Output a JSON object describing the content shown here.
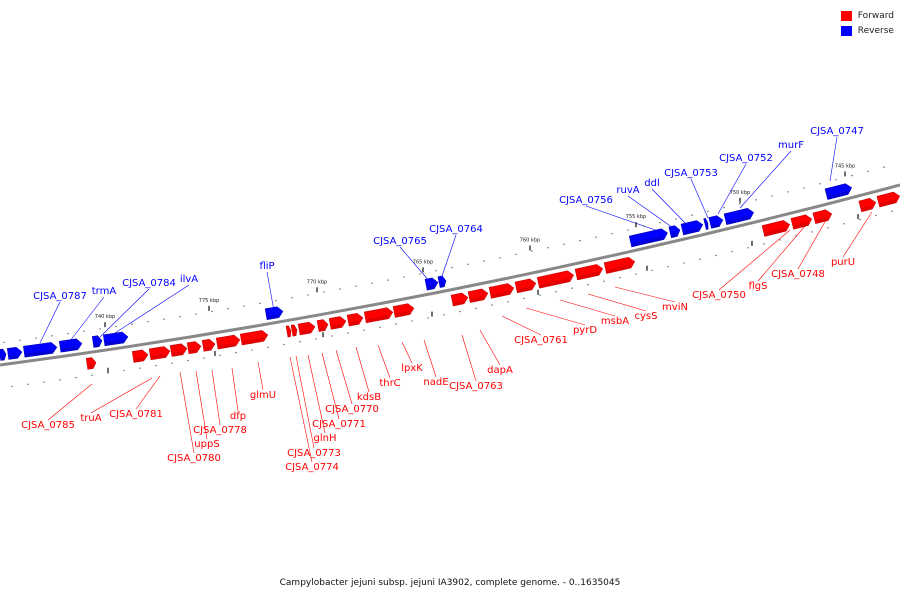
{
  "caption": "Campylobacter jejuni subsp. jejuni IA3902, complete genome. - 0..1635045",
  "legend": [
    {
      "label": "Forward",
      "color": "#ff0000"
    },
    {
      "label": "Reverse",
      "color": "#0000ff"
    }
  ],
  "colors": {
    "forward": "#ff0000",
    "forward_shade": "#c80000",
    "reverse": "#0000ff",
    "reverse_shade": "#0000b4",
    "backbone": "#888888"
  },
  "ticks": [
    "740 kbp",
    "775 kbp",
    "770 kbp",
    "765 kbp",
    "760 kbp",
    "755 kbp",
    "750 kbp",
    "745 kbp"
  ],
  "forward_labels": [
    "CJSA_0785",
    "truA",
    "CJSA_0781",
    "CJSA_0780",
    "uppS",
    "CJSA_0778",
    "dfp",
    "glmU",
    "CJSA_0774",
    "CJSA_0773",
    "glnH",
    "CJSA_0771",
    "CJSA_0770",
    "kdsB",
    "thrC",
    "lpxK",
    "nadE",
    "CJSA_0763",
    "dapA",
    "CJSA_0761",
    "pyrD",
    "msbA",
    "cysS",
    "mviN",
    "CJSA_0750",
    "flgS",
    "CJSA_0748",
    "purU"
  ],
  "reverse_labels": [
    "CJSA_0787",
    "trmA",
    "CJSA_0784",
    "ilvA",
    "fliP",
    "CJSA_0765",
    "CJSA_0764",
    "CJSA_0756",
    "ruvA",
    "ddl",
    "CJSA_0753",
    "CJSA_0752",
    "murF",
    "CJSA_0747"
  ]
}
